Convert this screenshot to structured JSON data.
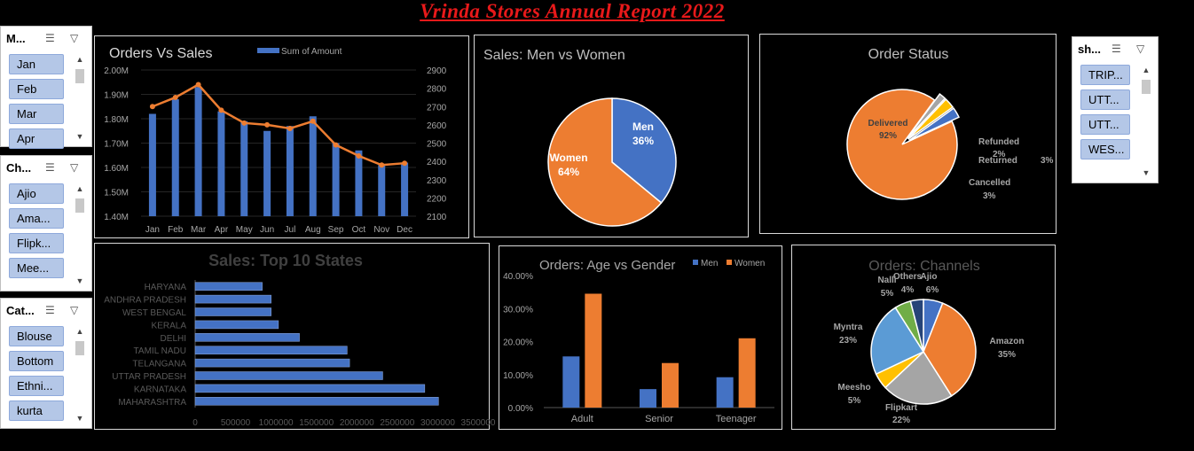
{
  "report_title": "Vrinda Stores Annual Report 2022",
  "slicers": [
    {
      "header": "M...",
      "items": [
        "Jan",
        "Feb",
        "Mar",
        "Apr"
      ]
    },
    {
      "header": "Ch...",
      "items": [
        "Ajio",
        "Ama...",
        "Flipk...",
        "Mee..."
      ]
    },
    {
      "header": "Cat...",
      "items": [
        "Blouse",
        "Bottom",
        "Ethni...",
        "kurta"
      ]
    },
    {
      "header": "sh...",
      "items": [
        "TRIP...",
        "UTT...",
        "UTT...",
        "WES..."
      ]
    }
  ],
  "icons": {
    "multiselect": "multiselect-icon",
    "clear_filter": "clear-filter-icon",
    "scroll_up": "scroll-up-icon",
    "scroll_down": "scroll-down-icon"
  },
  "colors": {
    "bar_blue": "#4472c4",
    "line_orange": "#ed7d31",
    "gray": "#a5a5a5",
    "yellow": "#ffc000",
    "green": "#70ad47",
    "navy": "#264478",
    "title_red": "#e8191a"
  },
  "chart_data": [
    {
      "id": "orders_vs_sales",
      "type": "bar",
      "title": "Orders Vs Sales",
      "categories": [
        "Jan",
        "Feb",
        "Mar",
        "Apr",
        "May",
        "Jun",
        "Jul",
        "Aug",
        "Sep",
        "Oct",
        "Nov",
        "Dec"
      ],
      "series": [
        {
          "name": "Sum of Amount",
          "type": "bar",
          "axis": "left",
          "values": [
            1820000,
            1880000,
            1930000,
            1830000,
            1790000,
            1750000,
            1770000,
            1810000,
            1700000,
            1670000,
            1610000,
            1620000
          ]
        },
        {
          "type": "line",
          "axis": "right",
          "values": [
            2700,
            2750,
            2820,
            2680,
            2610,
            2600,
            2580,
            2620,
            2490,
            2430,
            2380,
            2390
          ]
        }
      ],
      "ylim_left": [
        1400000,
        2000000
      ],
      "yticks_left": [
        "1.40M",
        "1.50M",
        "1.60M",
        "1.70M",
        "1.80M",
        "1.90M",
        "2.00M"
      ],
      "ylim_right": [
        2100,
        2900
      ],
      "yticks_right": [
        "2100",
        "2200",
        "2300",
        "2400",
        "2500",
        "2600",
        "2700",
        "2800",
        "2900"
      ],
      "legend": "top"
    },
    {
      "id": "men_vs_women",
      "type": "pie",
      "title": "Sales: Men vs Women",
      "labels": [
        "Men",
        "Women"
      ],
      "values": [
        36,
        64
      ],
      "value_labels": [
        "36%",
        "64%"
      ]
    },
    {
      "id": "order_status",
      "type": "pie",
      "title": "Order Status",
      "labels": [
        "Delivered",
        "Refunded",
        "Returned",
        "Cancelled"
      ],
      "values": [
        92,
        2,
        3,
        3
      ],
      "value_labels": [
        "92%",
        "2%",
        "3%",
        "3%"
      ]
    },
    {
      "id": "top_states",
      "type": "bar",
      "orientation": "horizontal",
      "title": "Sales: Top 10 States",
      "categories": [
        "HARYANA",
        "ANDHRA PRADESH",
        "WEST BENGAL",
        "KERALA",
        "DELHI",
        "TAMIL NADU",
        "TELANGANA",
        "UTTAR PRADESH",
        "KARNATAKA",
        "MAHARASHTRA"
      ],
      "values": [
        830000,
        940000,
        940000,
        1030000,
        1290000,
        1880000,
        1910000,
        2320000,
        2840000,
        3010000
      ],
      "xlim": [
        0,
        3500000
      ],
      "xticks": [
        "0",
        "500000",
        "1000000",
        "1500000",
        "2000000",
        "2500000",
        "3000000",
        "3500000"
      ]
    },
    {
      "id": "age_vs_gender",
      "type": "bar",
      "title": "Orders: Age vs Gender",
      "categories": [
        "Adult",
        "Senior",
        "Teenager"
      ],
      "series": [
        {
          "name": "Men",
          "values": [
            15.5,
            5.6,
            9.2
          ]
        },
        {
          "name": "Women",
          "values": [
            34.5,
            13.5,
            21.0
          ]
        }
      ],
      "ylim": [
        0,
        40
      ],
      "yticks": [
        "0.00%",
        "10.00%",
        "20.00%",
        "30.00%",
        "40.00%"
      ],
      "legend": "top"
    },
    {
      "id": "channels",
      "type": "pie",
      "title": "Orders: Channels",
      "labels": [
        "Ajio",
        "Amazon",
        "Flipkart",
        "Meesho",
        "Myntra",
        "Nalli",
        "Others"
      ],
      "values": [
        6,
        35,
        22,
        5,
        23,
        5,
        4
      ],
      "value_labels": [
        "6%",
        "35%",
        "22%",
        "5%",
        "23%",
        "5%",
        "4%"
      ]
    }
  ]
}
